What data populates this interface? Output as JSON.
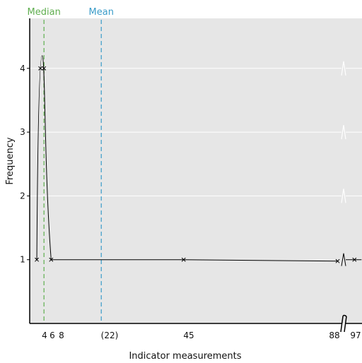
{
  "chart_data": {
    "type": "line",
    "xlabel": "Indicator measurements",
    "ylabel": "Frequency",
    "x_tick_labels": [
      "4",
      "6",
      "8",
      "(22)",
      "45",
      "88",
      "97"
    ],
    "y_tick_labels": [
      "1",
      "2",
      "3",
      "4"
    ],
    "ylim": [
      0,
      4.8
    ],
    "axis_break": "between 88 and 97",
    "grid": "horizontal",
    "points": [
      {
        "x": 4,
        "y": 1
      },
      {
        "x": 5,
        "y": 4
      },
      {
        "x": 6,
        "y": 4
      },
      {
        "x": 8,
        "y": 1
      },
      {
        "x": 45,
        "y": 1
      },
      {
        "x": 88,
        "y": 1
      },
      {
        "x": 97,
        "y": 1
      }
    ],
    "reference_lines": [
      {
        "label": "Median",
        "x": 6,
        "color": "#5fae4f"
      },
      {
        "label": "Mean",
        "x": 22,
        "color": "#3a9cc9"
      }
    ],
    "colors": {
      "plot_background": "#e6e6e6",
      "grid": "#ffffff",
      "curve": "#000000"
    }
  }
}
